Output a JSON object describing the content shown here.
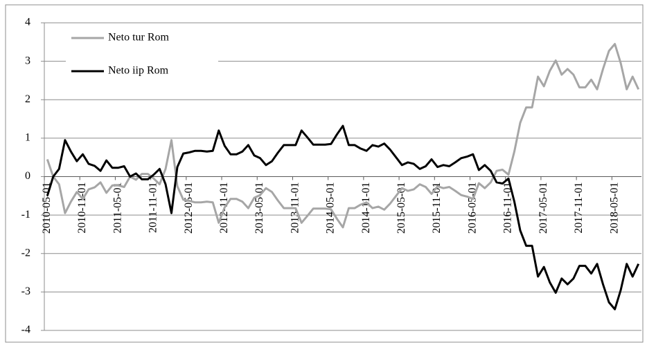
{
  "chart_data": {
    "type": "line",
    "categories": [
      "2010-05-01",
      null,
      null,
      null,
      null,
      null,
      "2010-11-01",
      null,
      null,
      null,
      null,
      null,
      "2011-05-01",
      null,
      null,
      null,
      null,
      null,
      "2011-11-01",
      null,
      null,
      null,
      null,
      null,
      "2012-05-01",
      null,
      null,
      null,
      null,
      null,
      "2012-11-01",
      null,
      null,
      null,
      null,
      null,
      "2013-05-01",
      null,
      null,
      null,
      null,
      null,
      "2013-11-01",
      null,
      null,
      null,
      null,
      null,
      "2014-05-01",
      null,
      null,
      null,
      null,
      null,
      "2014-11-01",
      null,
      null,
      null,
      null,
      null,
      "2015-05-01",
      null,
      null,
      null,
      null,
      null,
      "2015-11-01",
      null,
      null,
      null,
      null,
      null,
      "2016-05-01",
      null,
      null,
      null,
      null,
      null,
      "2016-11-01",
      null,
      null,
      null,
      null,
      null,
      "2017-05-01",
      null,
      null,
      null,
      null,
      null,
      "2017-11-01",
      null,
      null,
      null,
      null,
      null,
      "2018-05-01",
      null,
      null,
      null,
      null
    ],
    "series": [
      {
        "name": "Neto tur Rom",
        "color": "#a6a6a6",
        "values": [
          0.45,
          0,
          -0.2,
          -0.95,
          -0.65,
          -0.4,
          -0.58,
          -0.33,
          -0.28,
          -0.15,
          -0.42,
          -0.23,
          -0.23,
          -0.27,
          0,
          -0.08,
          0.07,
          0.07,
          -0.05,
          -0.2,
          0.2,
          0.95,
          -0.25,
          -0.6,
          -0.63,
          -0.67,
          -0.67,
          -0.65,
          -0.67,
          -1.2,
          -0.8,
          -0.58,
          -0.58,
          -0.65,
          -0.82,
          -0.55,
          -0.48,
          -0.3,
          -0.4,
          -0.62,
          -0.82,
          -0.82,
          -0.82,
          -1.2,
          -1.02,
          -0.83,
          -0.83,
          -0.83,
          -0.85,
          -1.1,
          -1.32,
          -0.82,
          -0.82,
          -0.73,
          -0.67,
          -0.82,
          -0.78,
          -0.86,
          -0.7,
          -0.5,
          -0.3,
          -0.37,
          -0.33,
          -0.2,
          -0.27,
          -0.45,
          -0.25,
          -0.3,
          -0.27,
          -0.37,
          -0.48,
          -0.52,
          -0.58,
          -0.17,
          -0.3,
          -0.15,
          0.15,
          0.18,
          0.05,
          0.65,
          1.4,
          1.8,
          1.8,
          2.6,
          2.35,
          2.75,
          3.02,
          2.65,
          2.8,
          2.65,
          2.32,
          2.32,
          2.52,
          2.27,
          2.8,
          3.27,
          3.45,
          2.95,
          2.27,
          2.6,
          2.27
        ]
      },
      {
        "name": "Neto iip Rom",
        "color": "#000000",
        "values": [
          -0.5,
          0,
          0.2,
          0.95,
          0.65,
          0.4,
          0.58,
          0.33,
          0.28,
          0.15,
          0.42,
          0.23,
          0.23,
          0.27,
          0,
          0.08,
          -0.07,
          -0.07,
          0.05,
          0.2,
          -0.2,
          -0.95,
          0.25,
          0.6,
          0.63,
          0.67,
          0.67,
          0.65,
          0.67,
          1.2,
          0.8,
          0.58,
          0.58,
          0.65,
          0.82,
          0.55,
          0.48,
          0.3,
          0.4,
          0.62,
          0.82,
          0.82,
          0.82,
          1.2,
          1.02,
          0.83,
          0.83,
          0.83,
          0.85,
          1.1,
          1.32,
          0.82,
          0.82,
          0.73,
          0.67,
          0.82,
          0.78,
          0.86,
          0.7,
          0.5,
          0.3,
          0.37,
          0.33,
          0.2,
          0.27,
          0.45,
          0.25,
          0.3,
          0.27,
          0.37,
          0.48,
          0.52,
          0.58,
          0.17,
          0.3,
          0.15,
          -0.15,
          -0.18,
          -0.05,
          -0.65,
          -1.4,
          -1.8,
          -1.8,
          -2.6,
          -2.35,
          -2.75,
          -3.02,
          -2.65,
          -2.8,
          -2.65,
          -2.32,
          -2.32,
          -2.52,
          -2.27,
          -2.8,
          -3.27,
          -3.45,
          -2.95,
          -2.27,
          -2.6,
          -2.27
        ]
      }
    ],
    "ylim": [
      -4,
      4
    ],
    "yticks": [
      -4,
      -3,
      -2,
      -1,
      0,
      1,
      2,
      3,
      4
    ],
    "grid": true
  }
}
